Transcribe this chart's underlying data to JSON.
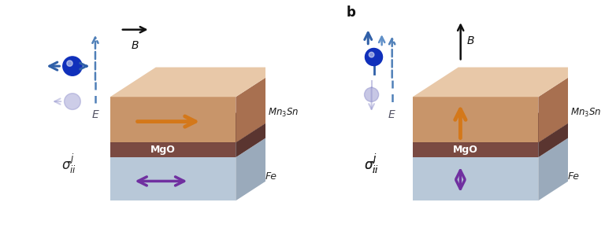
{
  "bg_color": "#ffffff",
  "layer_colors": {
    "mn3sn_top": "#E8C8A8",
    "mn3sn_front": "#C8956A",
    "mn3sn_side": "#A87050",
    "mgo_front": "#7A4A42",
    "mgo_side": "#5A3530",
    "fe_front": "#B8C8D8",
    "fe_side": "#9AAABB",
    "fe_top": "#C8D8E8"
  },
  "orange_arrow_color": "#D4781A",
  "purple_arrow_color": "#7030A0",
  "blue_dashed_color": "#5080B8",
  "blue_arrow_color": "#3060A8",
  "black_arrow_color": "#111111",
  "spin_blue": "#1030BB",
  "spin_ghost": "#9090CC",
  "sigma_text": "$\\sigma_{ii}^{j}$",
  "B_text": "$B$",
  "E_text": "$E$",
  "mgo_text": "MgO",
  "fe_text": "Fe",
  "mn3sn_text": "$Mn_3Sn$"
}
